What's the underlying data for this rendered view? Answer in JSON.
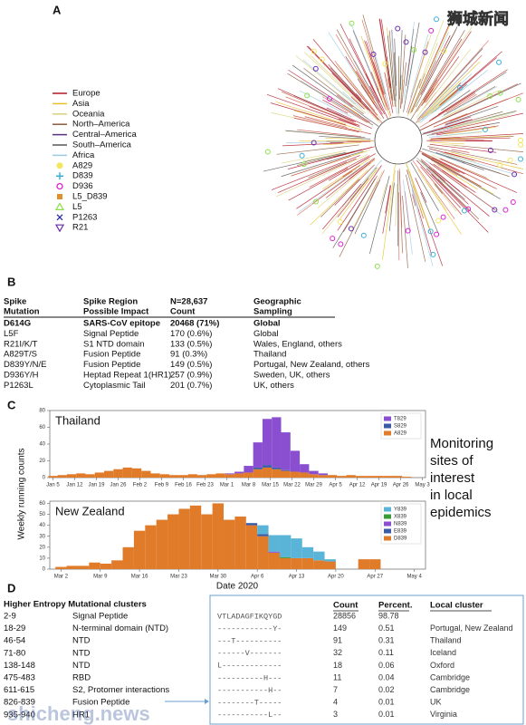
{
  "watermark": {
    "top": "狮城新闻",
    "bottom": "shicheng.news"
  },
  "panel_a": {
    "label": "A",
    "legend": [
      {
        "name": "Europe",
        "color": "#b2182b",
        "shape": "line"
      },
      {
        "name": "Asia",
        "color": "#e6c229",
        "shape": "line"
      },
      {
        "name": "Oceania",
        "color": "#d8d27a",
        "shape": "line"
      },
      {
        "name": "North–America",
        "color": "#8c5a3c",
        "shape": "line"
      },
      {
        "name": "Central–America",
        "color": "#5a2d82",
        "shape": "line"
      },
      {
        "name": "South–America",
        "color": "#555555",
        "shape": "line"
      },
      {
        "name": "Africa",
        "color": "#9ecae1",
        "shape": "line"
      },
      {
        "name": "A829",
        "color": "#f2e85c",
        "shape": "circle"
      },
      {
        "name": "D839",
        "color": "#3ab0d8",
        "shape": "plus"
      },
      {
        "name": "D936",
        "color": "#e020d0",
        "shape": "ring"
      },
      {
        "name": "L5_D839",
        "color": "#e0902a",
        "shape": "square"
      },
      {
        "name": "L5",
        "color": "#8be04a",
        "shape": "triangle"
      },
      {
        "name": "P1263",
        "color": "#2a2ab0",
        "shape": "cross"
      },
      {
        "name": "R21",
        "color": "#6a2ab0",
        "shape": "triangle-down"
      }
    ]
  },
  "panel_b": {
    "label": "B",
    "header": [
      [
        "Spike",
        "Mutation"
      ],
      [
        "Spike Region",
        "Possible Impact"
      ],
      [
        "N=28,637",
        "Count"
      ],
      [
        "Geographic",
        "Sampling"
      ]
    ],
    "rows": [
      [
        "D614G",
        "SARS-CoV epitope",
        "20468 (71%)",
        "Global"
      ],
      [
        "L5F",
        "Signal Peptide",
        "170  (0.6%)",
        "Global"
      ],
      [
        "R21I/K/T",
        "S1 NTD domain",
        "133  (0.5%)",
        "Wales, England, others"
      ],
      [
        "A829T/S",
        "Fusion Peptide",
        "91  (0.3%)",
        "Thailand"
      ],
      [
        "D839Y/N/E",
        "Fusion Peptide",
        "149  (0.5%)",
        "Portugal, New Zealand, others"
      ],
      [
        "D936Y/H",
        "Heptad Repeat 1(HR1)",
        "257  (0.9%)",
        "Sweden, UK, others"
      ],
      [
        "P1263L",
        "Cytoplasmic Tail",
        "201  (0.7%)",
        "UK, others"
      ]
    ]
  },
  "panel_c": {
    "label": "C",
    "y_label": "Weekly running counts",
    "x_label": "Date 2020",
    "note": [
      "Monitoring",
      "sites of",
      "interest",
      "in local",
      "epidemics"
    ],
    "charts": [
      {
        "type": "bar",
        "stacked": true,
        "title": "Thailand",
        "legend": "upper right",
        "x": [
          0,
          3,
          6,
          9,
          12,
          15,
          18,
          21,
          24,
          27,
          30,
          33,
          36,
          39,
          42,
          45,
          48,
          51,
          54,
          57,
          60,
          63,
          66,
          69,
          72,
          75,
          78,
          81,
          84,
          87,
          90,
          93,
          96,
          99,
          102,
          105,
          108,
          111,
          114,
          117
        ],
        "xlim": [
          -1,
          120
        ],
        "xticks": [
          {
            "value": 0,
            "label": "Jan 5"
          },
          {
            "value": 7,
            "label": "Jan 12"
          },
          {
            "value": 14,
            "label": "Jan 19"
          },
          {
            "value": 21,
            "label": "Jan 26"
          },
          {
            "value": 28,
            "label": "Feb 2"
          },
          {
            "value": 35,
            "label": "Feb 9"
          },
          {
            "value": 42,
            "label": "Feb 16"
          },
          {
            "value": 49,
            "label": "Feb 23"
          },
          {
            "value": 56,
            "label": "Mar 1"
          },
          {
            "value": 63,
            "label": "Mar 8"
          },
          {
            "value": 70,
            "label": "Mar 15"
          },
          {
            "value": 77,
            "label": "Mar 22"
          },
          {
            "value": 84,
            "label": "Mar 29"
          },
          {
            "value": 91,
            "label": "Apr 5"
          },
          {
            "value": 98,
            "label": "Apr 12"
          },
          {
            "value": 105,
            "label": "Apr 19"
          },
          {
            "value": 112,
            "label": "Apr 26"
          },
          {
            "value": 119,
            "label": "May 3"
          }
        ],
        "ylim": [
          0,
          80
        ],
        "yticks": [
          0,
          20,
          40,
          60,
          80
        ],
        "series": [
          {
            "name": "A829",
            "color": "#e07b2a",
            "values": [
              2,
              3,
              4,
              5,
              4,
              6,
              8,
              10,
              12,
              11,
              8,
              5,
              4,
              3,
              3,
              4,
              3,
              4,
              5,
              4,
              5,
              6,
              10,
              12,
              10,
              8,
              7,
              6,
              4,
              3,
              3,
              2,
              3,
              2,
              2,
              2,
              2,
              2,
              1,
              0
            ]
          },
          {
            "name": "S829",
            "color": "#3b5aa6",
            "values": [
              0,
              0,
              0,
              0,
              0,
              0,
              0,
              0,
              0,
              0,
              0,
              0,
              0,
              0,
              0,
              0,
              0,
              0,
              0,
              0,
              0,
              0,
              2,
              3,
              2,
              1,
              0,
              0,
              0,
              0,
              0,
              0,
              0,
              0,
              0,
              0,
              0,
              0,
              0,
              0
            ]
          },
          {
            "name": "T829",
            "color": "#8a4fd0",
            "values": [
              0,
              0,
              0,
              0,
              0,
              0,
              0,
              0,
              0,
              0,
              0,
              0,
              0,
              0,
              0,
              0,
              0,
              0,
              0,
              1,
              2,
              8,
              30,
              55,
              60,
              45,
              25,
              10,
              4,
              2,
              0,
              0,
              0,
              0,
              0,
              0,
              0,
              0,
              0,
              0
            ]
          }
        ]
      },
      {
        "type": "bar",
        "stacked": true,
        "title": "New Zealand",
        "legend": "upper right",
        "x": [
          0,
          2,
          4,
          6,
          8,
          10,
          12,
          14,
          16,
          18,
          20,
          22,
          24,
          26,
          28,
          30,
          32,
          34,
          36,
          38,
          40,
          42,
          44,
          46,
          48,
          50,
          52,
          54,
          56,
          58,
          60,
          62
        ],
        "xlim": [
          -2,
          65
        ],
        "xticks": [
          {
            "value": 0,
            "label": "Mar 2"
          },
          {
            "value": 7,
            "label": "Mar 9"
          },
          {
            "value": 14,
            "label": "Mar 16"
          },
          {
            "value": 21,
            "label": "Mar 23"
          },
          {
            "value": 28,
            "label": "Mar 30"
          },
          {
            "value": 35,
            "label": "Apr 6"
          },
          {
            "value": 42,
            "label": "Apr 13"
          },
          {
            "value": 49,
            "label": "Apr 20"
          },
          {
            "value": 56,
            "label": "Apr 27"
          },
          {
            "value": 63,
            "label": "May 4"
          }
        ],
        "ylim": [
          0,
          62
        ],
        "yticks": [
          0,
          10,
          20,
          30,
          40,
          50,
          60
        ],
        "series": [
          {
            "name": "D839",
            "color": "#e07b2a",
            "values": [
              2,
              3,
              3,
              6,
              5,
              8,
              20,
              35,
              40,
              45,
              50,
              55,
              58,
              50,
              60,
              45,
              48,
              40,
              30,
              15,
              10,
              10,
              10,
              8,
              7,
              0,
              0,
              9,
              9,
              0,
              0,
              0
            ]
          },
          {
            "name": "E839",
            "color": "#3b5aa6",
            "values": [
              0,
              0,
              0,
              0,
              0,
              0,
              0,
              0,
              0,
              0,
              0,
              0,
              0,
              0,
              0,
              0,
              0,
              2,
              2,
              0,
              0,
              0,
              0,
              0,
              0,
              0,
              0,
              0,
              0,
              0,
              0,
              0
            ]
          },
          {
            "name": "N839",
            "color": "#8a4fd0",
            "values": [
              0,
              0,
              0,
              0,
              0,
              0,
              0,
              0,
              0,
              0,
              0,
              0,
              0,
              0,
              0,
              0,
              0,
              0,
              0,
              1,
              0,
              0,
              0,
              0,
              0,
              0,
              0,
              0,
              0,
              0,
              0,
              0
            ]
          },
          {
            "name": "X839",
            "color": "#3a9a3a",
            "values": [
              0,
              0,
              0,
              0,
              0,
              0,
              0,
              0,
              0,
              0,
              0,
              0,
              0,
              0,
              0,
              0,
              0,
              0,
              0,
              0,
              1,
              0,
              0,
              0,
              0,
              0,
              0,
              0,
              0,
              0,
              0,
              0
            ]
          },
          {
            "name": "Y839",
            "color": "#5ab4d8",
            "values": [
              0,
              0,
              0,
              0,
              0,
              0,
              0,
              0,
              0,
              0,
              0,
              0,
              0,
              0,
              0,
              0,
              0,
              0,
              8,
              15,
              20,
              18,
              10,
              8,
              2,
              0,
              0,
              0,
              0,
              0,
              0,
              0
            ]
          }
        ]
      }
    ]
  },
  "panel_d": {
    "label": "D",
    "left_header": "Higher Entropy Mutational clusters",
    "left_rows": [
      [
        "2-9",
        "Signal Peptide"
      ],
      [
        "18-29",
        "N-terminal domain (NTD)"
      ],
      [
        "46-54",
        "NTD"
      ],
      [
        "71-80",
        "NTD"
      ],
      [
        "138-148",
        "NTD"
      ],
      [
        "475-483",
        "RBD"
      ],
      [
        "611-615",
        "S2, Protomer interactions"
      ],
      [
        "826-839",
        "Fusion Peptide"
      ],
      [
        "935-940",
        "HR1"
      ]
    ],
    "right_header": [
      "Count",
      "Percent.",
      "Local cluster"
    ],
    "right_rows": [
      [
        "VTLADAGFIKQYGD",
        28856,
        98.78
      ],
      [
        "------------Y-",
        149,
        0.51,
        "Portugal, New Zealand"
      ],
      [
        "---T----------",
        91,
        0.31,
        "Thailand"
      ],
      [
        "------V-------",
        32,
        0.11,
        "Iceland"
      ],
      [
        "L-------------",
        18,
        0.06,
        "Oxford"
      ],
      [
        "----------H---",
        11,
        0.04,
        "Cambridge"
      ],
      [
        "-----------H--",
        7,
        0.02,
        "Cambridge"
      ],
      [
        "--------T-----",
        4,
        0.01,
        "UK"
      ],
      [
        "-----------L--",
        3,
        0.01,
        "Virginia"
      ]
    ]
  }
}
